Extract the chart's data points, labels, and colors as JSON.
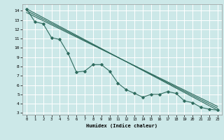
{
  "xlabel": "Humidex (Indice chaleur)",
  "background_color": "#cce8e8",
  "grid_color": "#ffffff",
  "line_color": "#2e6b5e",
  "xlim": [
    -0.5,
    23.5
  ],
  "ylim": [
    2.8,
    14.7
  ],
  "yticks": [
    3,
    4,
    5,
    6,
    7,
    8,
    9,
    10,
    11,
    12,
    13,
    14
  ],
  "xticks": [
    0,
    1,
    2,
    3,
    4,
    5,
    6,
    7,
    8,
    9,
    10,
    11,
    12,
    13,
    14,
    15,
    16,
    17,
    18,
    19,
    20,
    21,
    22,
    23
  ],
  "line1_x": [
    0,
    1,
    2,
    3,
    4,
    5,
    6,
    7,
    8,
    9,
    10,
    11,
    12,
    13,
    14,
    15,
    16,
    17,
    18,
    19,
    20,
    21,
    22,
    23
  ],
  "line1_y": [
    14.2,
    12.8,
    12.6,
    11.1,
    10.9,
    9.4,
    7.4,
    7.5,
    8.2,
    8.2,
    7.5,
    6.2,
    5.5,
    5.1,
    4.7,
    5.0,
    5.0,
    5.3,
    5.1,
    4.3,
    4.1,
    3.6,
    3.4,
    3.3
  ],
  "line2_x": [
    0,
    23
  ],
  "line2_y": [
    14.2,
    3.3
  ],
  "line3_x": [
    0,
    23
  ],
  "line3_y": [
    14.0,
    3.5
  ],
  "line4_x": [
    0,
    23
  ],
  "line4_y": [
    13.8,
    3.7
  ]
}
